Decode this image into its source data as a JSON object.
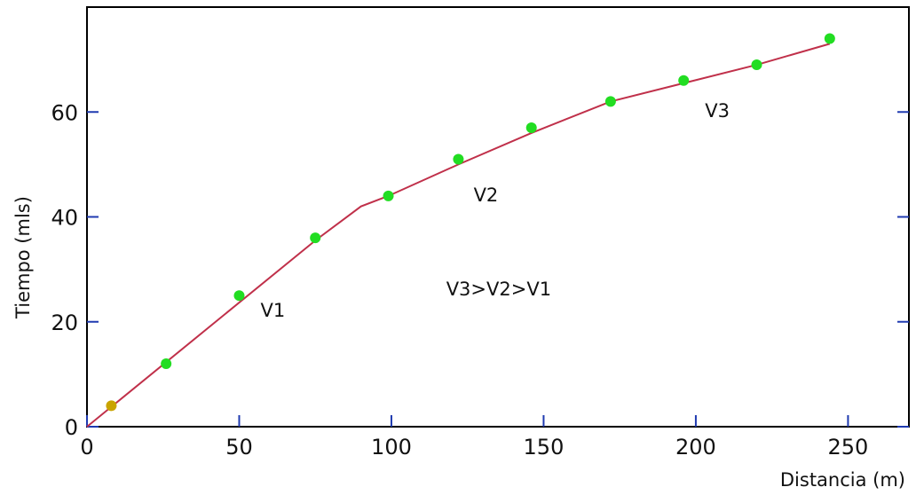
{
  "chart_data": {
    "type": "line",
    "xlabel": "Distancia  (m)",
    "ylabel": "Tiempo  (mls)",
    "xlim": [
      0,
      270
    ],
    "ylim": [
      0,
      80
    ],
    "x_ticks": [
      0,
      50,
      100,
      150,
      200,
      250
    ],
    "y_ticks": [
      0,
      20,
      40,
      60
    ],
    "grid": false,
    "series": [
      {
        "kind": "scatter",
        "color": "#22dd22",
        "points": [
          [
            8,
            4
          ],
          [
            26,
            12
          ],
          [
            50,
            25
          ],
          [
            75,
            36
          ],
          [
            99,
            44
          ],
          [
            122,
            51
          ],
          [
            146,
            57
          ],
          [
            172,
            62
          ],
          [
            196,
            66
          ],
          [
            220,
            69
          ],
          [
            244,
            74
          ]
        ]
      },
      {
        "kind": "line",
        "color": "#c0304a",
        "points": [
          [
            0,
            0
          ],
          [
            75,
            35.5
          ],
          [
            90,
            42
          ],
          [
            99,
            44
          ],
          [
            122,
            50
          ],
          [
            146,
            56
          ],
          [
            172,
            62
          ],
          [
            196,
            65.5
          ],
          [
            220,
            69
          ],
          [
            244,
            73
          ]
        ]
      }
    ],
    "annotations": [
      {
        "text": "V1",
        "x": 57,
        "y": 21
      },
      {
        "text": "V2",
        "x": 127,
        "y": 43
      },
      {
        "text": "V3",
        "x": 203,
        "y": 59
      },
      {
        "text": "V3>V2>V1",
        "x": 118,
        "y": 25
      }
    ],
    "colors": {
      "axes": "#000000",
      "ticks": "#1f3ab0",
      "line": "#c0304a",
      "points": "#22dd22",
      "first_point": "#c9a400"
    }
  }
}
